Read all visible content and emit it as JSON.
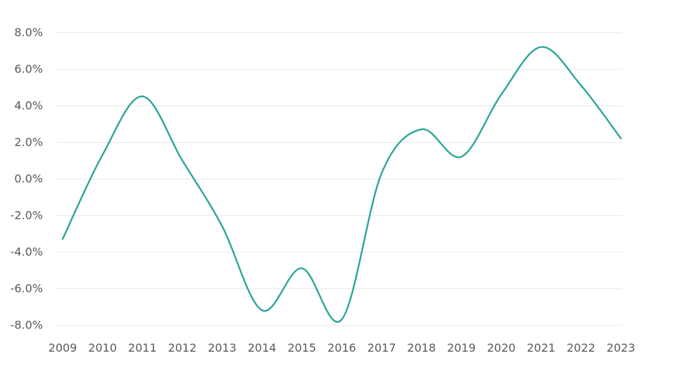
{
  "chart_data": {
    "type": "line",
    "title": "",
    "xlabel": "",
    "ylabel": "",
    "x": [
      "2009",
      "2010",
      "2011",
      "2012",
      "2013",
      "2014",
      "2015",
      "2016",
      "2017",
      "2018",
      "2019",
      "2020",
      "2021",
      "2022",
      "2023"
    ],
    "series": [
      {
        "values": [
          -3.3,
          1.3,
          4.5,
          1.0,
          -2.6,
          -7.2,
          -4.9,
          -7.7,
          0.3,
          2.7,
          1.2,
          4.6,
          7.2,
          5.1,
          2.2
        ],
        "color": "#2aa698"
      }
    ],
    "ylim": [
      -8,
      8
    ],
    "yticks": [
      -8,
      -6,
      -4,
      -2,
      0,
      2,
      4,
      6,
      8
    ],
    "ytick_labels": [
      "-8.0%",
      "-6.0%",
      "-4.0%",
      "-2.0%",
      "0.0%",
      "2.0%",
      "4.0%",
      "6.0%",
      "8.0%"
    ],
    "grid": true,
    "legend": "none"
  }
}
